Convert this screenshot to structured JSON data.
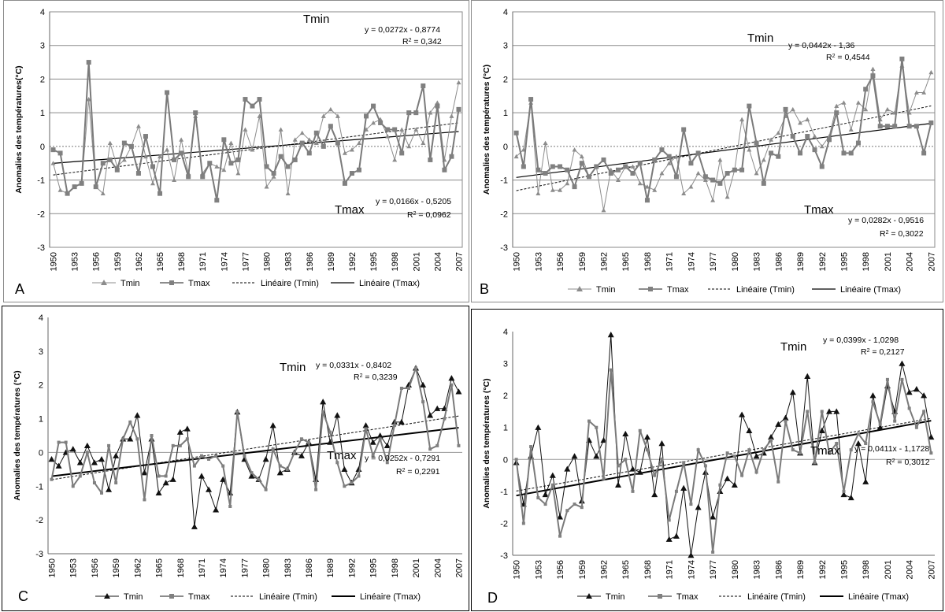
{
  "chart_data": [
    {
      "type": "line",
      "panel_letter": "A",
      "ylabel": "Anomalies des températures(°C)",
      "ylim": [
        -3,
        4
      ],
      "yticks": [
        "-3",
        "-2",
        "-1",
        "0",
        "1",
        "2",
        "3",
        "4"
      ],
      "xticks": [
        "1950",
        "1953",
        "1956",
        "1959",
        "1962",
        "1965",
        "1968",
        "1971",
        "1974",
        "1977",
        "1980",
        "1983",
        "1986",
        "1989",
        "1992",
        "1995",
        "1998",
        "2001",
        "2004",
        "2007"
      ],
      "legend": [
        "Tmin",
        "Tmax",
        "Linéaire (Tmin)",
        "Linéaire (Tmax)"
      ],
      "labels": {
        "tmin": "Tmin",
        "tmax": "Tmax"
      },
      "tmin_eq": "y = 0,0272x - 0,8774",
      "tmin_r2": "R² = 0,342",
      "tmax_eq": "y = 0,0166x - 0,5205",
      "tmax_r2": "R² = 0,0962",
      "trend_tmin": [
        0.0272,
        -0.8774
      ],
      "trend_tmax": [
        0.0166,
        -0.5205
      ],
      "series": [
        {
          "name": "Tmin",
          "values": [
            -0.5,
            -1.3,
            -1.4,
            -1.2,
            -1.1,
            1.4,
            -1.2,
            -1.4,
            0.1,
            -0.6,
            -0.4,
            0.0,
            0.6,
            -0.3,
            -1.1,
            -0.3,
            -0.1,
            -1.0,
            0.2,
            -0.8,
            0.9,
            -0.8,
            -0.5,
            -0.6,
            -0.7,
            0.1,
            -0.8,
            0.5,
            -0.1,
            0.9,
            -1.2,
            -0.9,
            0.5,
            -1.4,
            0.2,
            0.4,
            0.2,
            0.1,
            0.9,
            1.1,
            0.9,
            -0.2,
            -0.1,
            0.1,
            0.5,
            0.7,
            0.8,
            0.3,
            -0.4,
            0.5,
            0.0,
            0.5,
            0.1,
            1.0,
            1.3,
            -0.4,
            0.9,
            1.9
          ]
        },
        {
          "name": "Tmax",
          "values": [
            -0.1,
            -0.2,
            -1.4,
            -1.2,
            -1.1,
            2.5,
            -1.2,
            -0.5,
            -0.4,
            -0.7,
            0.1,
            0.0,
            -0.8,
            0.3,
            -0.6,
            -1.4,
            1.6,
            -0.4,
            -0.2,
            -0.9,
            1.0,
            -0.9,
            -0.5,
            -1.6,
            0.2,
            -0.5,
            -0.4,
            1.4,
            1.2,
            1.4,
            -0.6,
            -0.8,
            -0.3,
            -0.6,
            -0.4,
            0.1,
            -0.2,
            0.4,
            0.0,
            0.6,
            0.1,
            -1.1,
            -0.8,
            -0.7,
            0.9,
            1.2,
            0.7,
            0.5,
            0.5,
            -0.2,
            1.0,
            1.0,
            1.8,
            -0.4,
            1.2,
            -0.7,
            -0.3,
            1.1
          ]
        }
      ]
    },
    {
      "type": "line",
      "panel_letter": "B",
      "ylabel": "Anomalies des températures (°C)",
      "ylim": [
        -3,
        4
      ],
      "yticks": [
        "-3",
        "-2",
        "-1",
        "0",
        "1",
        "2",
        "3",
        "4"
      ],
      "xticks": [
        "1950",
        "1953",
        "1956",
        "1959",
        "1962",
        "1965",
        "1968",
        "1971",
        "1974",
        "1977",
        "1980",
        "1983",
        "1986",
        "1989",
        "1992",
        "1995",
        "1998",
        "2001",
        "2004",
        "2007"
      ],
      "legend": [
        "Tmin",
        "Tmax",
        "Linéaire (Tmin)",
        "Linéaire (Tmax)"
      ],
      "labels": {
        "tmin": "Tmin",
        "tmax": "Tmax"
      },
      "tmin_eq": "y = 0,0442x - 1,36",
      "tmin_r2": "R² = 0,4544",
      "tmax_eq": "y = 0,0282x - 0,9516",
      "tmax_r2": "R² = 0,3022",
      "trend_tmin": [
        0.0442,
        -1.36
      ],
      "trend_tmax": [
        0.0282,
        -0.9516
      ],
      "series": [
        {
          "name": "Tmin",
          "values": [
            -0.3,
            -0.1,
            1.3,
            -1.4,
            0.1,
            -1.3,
            -1.3,
            -1.1,
            -0.1,
            -0.3,
            -0.9,
            -0.6,
            -1.9,
            -0.7,
            -1.0,
            -0.6,
            -0.6,
            -1.1,
            -1.2,
            -1.3,
            -0.8,
            -0.5,
            -0.3,
            -1.4,
            -1.2,
            -0.8,
            -1.0,
            -1.6,
            -0.4,
            -1.5,
            -0.7,
            0.8,
            -0.1,
            -0.8,
            -0.4,
            0.2,
            0.4,
            0.9,
            1.1,
            0.7,
            0.8,
            0.3,
            0.0,
            0.3,
            1.2,
            1.3,
            0.5,
            1.3,
            1.1,
            2.3,
            0.8,
            1.1,
            1.0,
            2.4,
            1.0,
            1.6,
            1.6,
            2.2
          ]
        },
        {
          "name": "Tmax",
          "values": [
            0.4,
            -0.6,
            1.4,
            -0.7,
            -0.8,
            -0.6,
            -0.6,
            -0.7,
            -1.2,
            -0.5,
            -0.9,
            -0.6,
            -0.4,
            -0.8,
            -0.7,
            -0.6,
            -0.8,
            -0.5,
            -1.6,
            -0.4,
            -0.1,
            -0.3,
            -0.9,
            0.5,
            -0.5,
            -0.2,
            -0.9,
            -1.0,
            -1.1,
            -0.8,
            -0.7,
            -0.7,
            1.2,
            0.1,
            -1.1,
            -0.2,
            -0.3,
            1.1,
            0.3,
            -0.2,
            0.3,
            -0.1,
            -0.6,
            0.2,
            1.0,
            -0.2,
            -0.2,
            0.1,
            1.7,
            2.1,
            0.6,
            0.6,
            0.6,
            2.6,
            0.6,
            0.6,
            -0.2,
            0.7
          ]
        }
      ]
    },
    {
      "type": "line",
      "panel_letter": "C",
      "ylabel": "Anomalies des températures (°C)",
      "ylim": [
        -3,
        4
      ],
      "yticks": [
        "-3",
        "-2",
        "-1",
        "0",
        "1",
        "2",
        "3",
        "4"
      ],
      "xticks": [
        "1950",
        "1953",
        "1956",
        "1959",
        "1962",
        "1965",
        "1968",
        "1971",
        "1974",
        "1977",
        "1980",
        "1983",
        "1986",
        "1989",
        "1992",
        "1995",
        "1998",
        "2001",
        "2004",
        "2007"
      ],
      "legend": [
        "Tmin",
        "Tmax",
        "Linéaire (Tmin)",
        "Linéaire (Tmax)"
      ],
      "labels": {
        "tmin": "Tmin",
        "tmax": "Tmax"
      },
      "tmin_eq": "y = 0,0331x - 0,8402",
      "tmin_r2": "R² = 0,3239",
      "tmax_eq": "y = 0,0252x - 0,7291",
      "tmax_r2": "R² = 0,2291",
      "trend_tmin": [
        0.0331,
        -0.8402
      ],
      "trend_tmax": [
        0.0252,
        -0.7291
      ],
      "series": [
        {
          "name": "Tmin",
          "values": [
            -0.2,
            -0.4,
            0.0,
            0.1,
            -0.3,
            0.2,
            -0.3,
            -0.2,
            -1.1,
            -0.1,
            0.4,
            0.4,
            1.1,
            -0.6,
            0.4,
            -1.2,
            -0.9,
            -0.8,
            0.6,
            0.7,
            -2.2,
            -0.7,
            -1.1,
            -1.7,
            -0.8,
            -1.2,
            1.2,
            -0.2,
            -0.7,
            -0.8,
            -0.2,
            0.8,
            -0.6,
            -0.5,
            0.0,
            -0.1,
            0.3,
            -0.8,
            1.5,
            0.3,
            1.1,
            -0.5,
            -0.9,
            -0.5,
            0.8,
            0.3,
            0.5,
            0.2,
            0.9,
            0.9,
            2.0,
            2.5,
            2.0,
            1.1,
            1.3,
            1.3,
            2.2,
            1.8
          ]
        },
        {
          "name": "Tmax",
          "values": [
            -0.8,
            0.3,
            0.3,
            -1.0,
            -0.7,
            0.0,
            -0.9,
            -1.2,
            0.2,
            -0.9,
            0.4,
            0.9,
            0.4,
            -1.4,
            0.5,
            -0.7,
            -0.7,
            0.2,
            0.2,
            0.4,
            -0.4,
            -0.1,
            -0.2,
            -0.1,
            -0.4,
            -1.6,
            1.2,
            -0.1,
            -0.6,
            -0.8,
            -1.1,
            0.1,
            -0.4,
            -0.5,
            0.0,
            0.4,
            0.3,
            -1.1,
            1.2,
            0.6,
            -0.3,
            -1.0,
            -0.9,
            -0.7,
            0.7,
            -0.1,
            0.4,
            -0.3,
            0.8,
            1.9,
            1.9,
            2.5,
            1.5,
            0.1,
            0.2,
            1.0,
            2.0,
            0.2
          ]
        }
      ]
    },
    {
      "type": "line",
      "panel_letter": "D",
      "ylabel": "Anomalies des températures (°C)",
      "ylim": [
        -3,
        4
      ],
      "yticks": [
        "-3",
        "-2",
        "-1",
        "0",
        "1",
        "2",
        "3",
        "4"
      ],
      "xticks": [
        "1950",
        "1953",
        "1956",
        "1959",
        "1962",
        "1965",
        "1968",
        "1971",
        "1974",
        "1977",
        "1980",
        "1983",
        "1986",
        "1989",
        "1992",
        "1995",
        "1998",
        "2001",
        "2004",
        "2007"
      ],
      "legend": [
        "Tmin",
        "Tmax",
        "Linéaire (Tmin)",
        "Linéaire (Tmax)"
      ],
      "labels": {
        "tmin": "Tmin",
        "tmax": "Tmax"
      },
      "tmin_eq": "y = 0,0399x - 1,0298",
      "tmin_r2": "R² = 0,2127",
      "tmax_eq": "y = 0,0411x - 1,1728",
      "tmax_r2": "R² = 0,3012",
      "trend_tmin": [
        0.0399,
        -1.0298
      ],
      "trend_tmax": [
        0.0411,
        -1.1728
      ],
      "series": [
        {
          "name": "Tmin",
          "values": [
            -0.1,
            -1.4,
            0.1,
            1.0,
            -1.1,
            -0.5,
            -1.8,
            -0.3,
            0.1,
            -1.3,
            0.6,
            0.1,
            0.6,
            3.9,
            -0.8,
            0.8,
            -0.3,
            -0.4,
            0.7,
            -1.1,
            0.5,
            -2.5,
            -2.4,
            -0.9,
            -3.0,
            -1.5,
            -0.4,
            -1.8,
            -1.0,
            -0.6,
            -0.8,
            1.4,
            0.9,
            0.1,
            0.2,
            0.7,
            1.1,
            1.3,
            2.1,
            0.2,
            2.6,
            -0.1,
            0.9,
            1.5,
            1.5,
            -1.1,
            -1.2,
            0.5,
            -0.7,
            2.0,
            1.0,
            2.3,
            1.5,
            3.0,
            2.1,
            2.2,
            2.0,
            0.7
          ]
        },
        {
          "name": "Tmax",
          "values": [
            0.0,
            -2.0,
            0.4,
            -1.2,
            -1.4,
            -0.8,
            -2.4,
            -1.6,
            -1.4,
            -1.5,
            1.2,
            1.0,
            -0.6,
            2.8,
            -0.2,
            0.0,
            -1.0,
            0.9,
            0.3,
            -0.5,
            0.0,
            -1.9,
            -1.0,
            -0.1,
            -1.4,
            0.3,
            -0.2,
            -2.9,
            -0.8,
            0.2,
            0.1,
            -0.5,
            0.3,
            -0.4,
            0.3,
            0.6,
            -0.7,
            1.2,
            0.3,
            0.2,
            1.5,
            -0.1,
            1.5,
            0.2,
            0.5,
            -1.0,
            0.3,
            0.8,
            0.5,
            1.8,
            1.1,
            2.5,
            1.2,
            2.5,
            1.6,
            1.0,
            1.5,
            0.2
          ]
        }
      ]
    }
  ]
}
